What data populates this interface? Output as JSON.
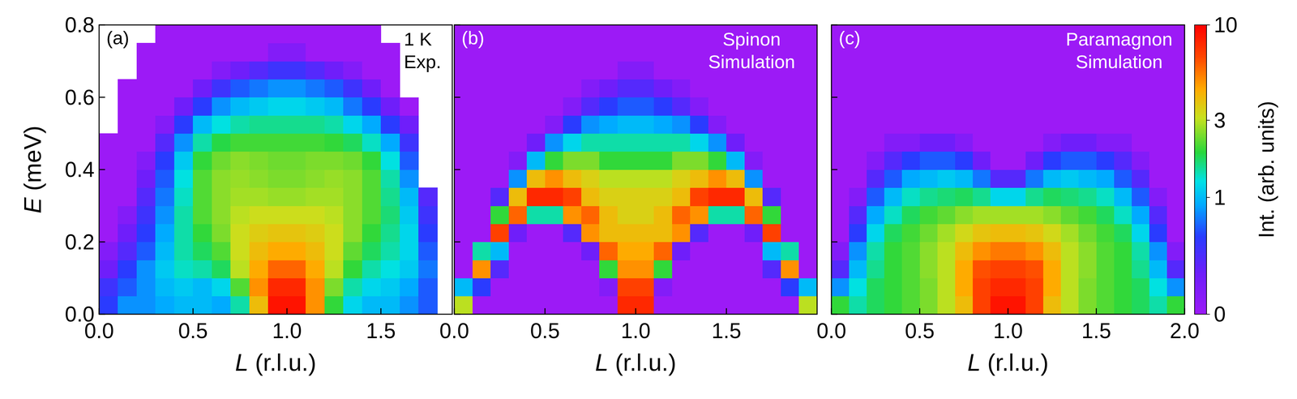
{
  "chart_data": [
    {
      "type": "heatmap",
      "panel_label": "(a)",
      "annotations": [
        "1 K",
        "Exp."
      ],
      "x_label": "L (r.l.u.)",
      "y_label": "E (meV)",
      "xlim": [
        0,
        1.88
      ],
      "ylim": [
        0,
        0.8
      ],
      "xticks": [
        {
          "value": 0,
          "label": "0.0"
        },
        {
          "value": 0.5,
          "label": "0.5"
        },
        {
          "value": 1,
          "label": "1.0"
        },
        {
          "value": 1.5,
          "label": "1.5"
        }
      ],
      "yticks": [
        {
          "value": 0,
          "label": "0.0"
        },
        {
          "value": 0.2,
          "label": "0.2"
        },
        {
          "value": 0.4,
          "label": "0.4"
        },
        {
          "value": 0.6,
          "label": "0.6"
        },
        {
          "value": 0.8,
          "label": "0.8"
        }
      ],
      "x": [
        0.05,
        0.15,
        0.25,
        0.35,
        0.45,
        0.55,
        0.65,
        0.75,
        0.85,
        0.95,
        1.05,
        1.15,
        1.25,
        1.35,
        1.45,
        1.55,
        1.65,
        1.75,
        1.85
      ],
      "y": [
        0.025,
        0.075,
        0.125,
        0.175,
        0.225,
        0.275,
        0.325,
        0.375,
        0.425,
        0.475,
        0.525,
        0.575,
        0.625,
        0.675,
        0.725,
        0.775
      ],
      "z": [
        [
          0.5,
          0.8,
          0.8,
          0.9,
          1.0,
          1.0,
          0.9,
          1.5,
          4,
          9,
          9,
          5,
          2,
          1.2,
          1.0,
          1.0,
          0.8,
          0.6,
          null
        ],
        [
          0.4,
          0.6,
          0.8,
          1.0,
          1.1,
          1.0,
          1.2,
          2.2,
          5,
          8,
          8,
          5,
          2.5,
          1.5,
          1.2,
          1.1,
          0.9,
          0.6,
          null
        ],
        [
          0.2,
          0.5,
          0.8,
          1.1,
          1.4,
          1.5,
          1.8,
          3,
          4.5,
          6,
          6,
          4.5,
          3,
          2,
          1.5,
          1.3,
          1.1,
          0.7,
          null
        ],
        [
          0.1,
          0.3,
          0.6,
          1.0,
          1.5,
          1.8,
          2.2,
          3.2,
          4,
          4.5,
          4.5,
          4,
          3.2,
          2.3,
          1.8,
          1.5,
          1.2,
          0.6,
          null
        ],
        [
          0,
          0.2,
          0.5,
          0.9,
          1.5,
          2.0,
          2.5,
          3.2,
          3.6,
          3.8,
          3.8,
          3.6,
          3.2,
          2.6,
          2.0,
          1.6,
          1.2,
          0.5,
          null
        ],
        [
          0,
          0.1,
          0.4,
          0.8,
          1.5,
          2.2,
          2.6,
          3.0,
          3.2,
          3.2,
          3.2,
          3.2,
          3.0,
          2.6,
          2.2,
          1.7,
          1.1,
          0.4,
          null
        ],
        [
          0,
          0,
          0.3,
          0.7,
          1.4,
          2.2,
          2.6,
          2.8,
          2.8,
          2.7,
          2.7,
          2.8,
          2.8,
          2.6,
          2.2,
          1.6,
          1.0,
          0.3,
          null
        ],
        [
          0,
          0,
          0.2,
          0.6,
          1.3,
          2.2,
          2.6,
          2.7,
          2.6,
          2.5,
          2.5,
          2.6,
          2.7,
          2.6,
          2.2,
          1.5,
          0.8,
          null,
          null
        ],
        [
          0,
          0,
          0.1,
          0.5,
          1.1,
          2.0,
          2.4,
          2.6,
          2.5,
          2.4,
          2.4,
          2.5,
          2.5,
          2.4,
          2.0,
          1.3,
          0.6,
          null,
          null
        ],
        [
          0,
          0,
          0,
          0.3,
          0.8,
          1.5,
          1.9,
          2.1,
          2.1,
          2.1,
          2.1,
          2.1,
          2.0,
          1.8,
          1.4,
          0.9,
          0.4,
          null,
          null
        ],
        [
          null,
          0,
          0,
          0.1,
          0.5,
          1.0,
          1.3,
          1.5,
          1.6,
          1.6,
          1.6,
          1.6,
          1.5,
          1.2,
          0.9,
          0.5,
          0.2,
          null,
          null
        ],
        [
          null,
          0,
          0,
          0,
          0.2,
          0.5,
          0.8,
          1.0,
          1.1,
          1.2,
          1.2,
          1.1,
          1.0,
          0.7,
          0.5,
          0.2,
          0,
          null,
          null
        ],
        [
          null,
          0,
          0,
          0,
          0,
          0.2,
          0.4,
          0.6,
          0.7,
          0.8,
          0.8,
          0.7,
          0.6,
          0.4,
          0.2,
          0,
          null,
          null,
          null
        ],
        [
          null,
          null,
          0,
          0,
          0,
          0,
          0.1,
          0.2,
          0.3,
          0.4,
          0.4,
          0.3,
          0.2,
          0.1,
          0,
          0,
          null,
          null,
          null
        ],
        [
          null,
          null,
          0,
          0,
          0,
          0,
          0,
          0,
          0,
          0.1,
          0.1,
          0,
          0,
          0,
          0,
          0,
          null,
          null,
          null
        ],
        [
          null,
          null,
          null,
          0,
          0,
          0,
          0,
          0,
          0,
          0,
          0,
          0,
          0,
          0,
          0,
          null,
          null,
          null,
          null
        ]
      ]
    },
    {
      "type": "heatmap",
      "panel_label": "(b)",
      "annotations": [
        "Spinon",
        "Simulation"
      ],
      "x_label": "L (r.l.u.)",
      "tick_labels": "x",
      "xlim": [
        0,
        2.0
      ],
      "ylim": [
        0,
        0.8
      ],
      "xticks": [
        {
          "value": 0,
          "label": "0.0"
        },
        {
          "value": 0.5,
          "label": "0.5"
        },
        {
          "value": 1,
          "label": "1.0"
        },
        {
          "value": 1.5,
          "label": "1.5"
        }
      ],
      "yticks": [
        {
          "value": 0,
          "label": "0.0"
        },
        {
          "value": 0.2,
          "label": "0.2"
        },
        {
          "value": 0.4,
          "label": "0.4"
        },
        {
          "value": 0.6,
          "label": "0.6"
        },
        {
          "value": 0.8,
          "label": "0.8"
        }
      ],
      "x": [
        0.05,
        0.15,
        0.25,
        0.35,
        0.45,
        0.55,
        0.65,
        0.75,
        0.85,
        0.95,
        1.05,
        1.15,
        1.25,
        1.35,
        1.45,
        1.55,
        1.65,
        1.75,
        1.85,
        1.95
      ],
      "y": [
        0.025,
        0.075,
        0.125,
        0.175,
        0.225,
        0.275,
        0.325,
        0.375,
        0.425,
        0.475,
        0.525,
        0.575,
        0.625,
        0.675,
        0.725,
        0.775
      ],
      "z": [
        [
          3,
          0,
          0,
          0,
          0,
          0,
          0,
          0,
          0,
          8,
          8,
          0,
          0,
          0,
          0,
          0,
          0,
          0,
          0,
          3
        ],
        [
          1,
          0.5,
          0,
          0,
          0,
          0,
          0,
          0,
          0.1,
          7,
          7,
          0.1,
          0,
          0,
          0,
          0,
          0,
          0,
          0.5,
          1
        ],
        [
          0,
          5,
          0.3,
          0,
          0,
          0,
          0,
          0,
          2,
          5,
          5,
          2,
          0,
          0,
          0,
          0,
          0,
          0.3,
          5,
          0
        ],
        [
          0,
          1.5,
          1,
          0,
          0,
          0,
          0,
          0.2,
          6,
          4.5,
          4.5,
          6,
          0.2,
          0,
          0,
          0,
          0,
          1,
          1.5,
          0
        ],
        [
          0,
          0,
          7,
          0.2,
          0,
          0,
          0.3,
          5,
          4,
          4,
          4,
          4,
          5,
          0.3,
          0,
          0,
          0.2,
          7,
          0,
          0
        ],
        [
          0,
          0,
          2,
          6,
          1.5,
          1.5,
          5,
          6,
          4,
          3.5,
          3.5,
          4,
          6,
          5,
          1.5,
          1.5,
          6,
          2,
          0,
          0
        ],
        [
          0,
          0,
          0.3,
          4,
          8,
          8,
          7,
          4,
          3.5,
          3.5,
          3.5,
          3.5,
          4,
          7,
          8,
          8,
          4,
          0.3,
          0,
          0
        ],
        [
          0,
          0,
          0,
          0.8,
          4,
          5,
          4,
          3.5,
          3,
          3,
          3,
          3,
          3.5,
          4,
          5,
          4,
          0.8,
          0,
          0,
          0
        ],
        [
          0,
          0,
          0,
          0.1,
          1,
          2,
          2.5,
          2.5,
          2,
          2,
          2,
          2,
          2.5,
          2.5,
          2,
          1,
          0.1,
          0,
          0,
          0
        ],
        [
          0,
          0,
          0,
          0,
          0.2,
          0.8,
          1.2,
          1.5,
          1.5,
          1.5,
          1.5,
          1.5,
          1.5,
          1.2,
          0.8,
          0.2,
          0,
          0,
          0,
          0
        ],
        [
          0,
          0,
          0,
          0,
          0,
          0.1,
          0.5,
          0.8,
          0.9,
          1,
          1,
          0.9,
          0.8,
          0.5,
          0.1,
          0,
          0,
          0,
          0,
          0
        ],
        [
          0,
          0,
          0,
          0,
          0,
          0,
          0.1,
          0.3,
          0.5,
          0.6,
          0.6,
          0.5,
          0.3,
          0.1,
          0,
          0,
          0,
          0,
          0,
          0
        ],
        [
          0,
          0,
          0,
          0,
          0,
          0,
          0,
          0.1,
          0.2,
          0.3,
          0.3,
          0.2,
          0.1,
          0,
          0,
          0,
          0,
          0,
          0,
          0
        ],
        [
          0,
          0,
          0,
          0,
          0,
          0,
          0,
          0,
          0,
          0.1,
          0.1,
          0,
          0,
          0,
          0,
          0,
          0,
          0,
          0,
          0
        ],
        [
          0,
          0,
          0,
          0,
          0,
          0,
          0,
          0,
          0,
          0,
          0,
          0,
          0,
          0,
          0,
          0,
          0,
          0,
          0,
          0
        ],
        [
          0,
          0,
          0,
          0,
          0,
          0,
          0,
          0,
          0,
          0,
          0,
          0,
          0,
          0,
          0,
          0,
          0,
          0,
          0,
          0
        ]
      ]
    },
    {
      "type": "heatmap",
      "panel_label": "(c)",
      "annotations": [
        "Paramagnon",
        "Simulation"
      ],
      "x_label": "L (r.l.u.)",
      "tick_labels": "x",
      "xlim": [
        0,
        2.0
      ],
      "ylim": [
        0,
        0.8
      ],
      "xticks": [
        {
          "value": 0,
          "label": "0.0"
        },
        {
          "value": 0.5,
          "label": "0.5"
        },
        {
          "value": 1,
          "label": "1.0"
        },
        {
          "value": 1.5,
          "label": "1.5"
        },
        {
          "value": 2,
          "label": "2.0"
        }
      ],
      "yticks": [
        {
          "value": 0,
          "label": "0.0"
        },
        {
          "value": 0.2,
          "label": "0.2"
        },
        {
          "value": 0.4,
          "label": "0.4"
        },
        {
          "value": 0.6,
          "label": "0.6"
        },
        {
          "value": 0.8,
          "label": "0.8"
        }
      ],
      "x": [
        0.05,
        0.15,
        0.25,
        0.35,
        0.45,
        0.55,
        0.65,
        0.75,
        0.85,
        0.95,
        1.05,
        1.15,
        1.25,
        1.35,
        1.45,
        1.55,
        1.65,
        1.75,
        1.85,
        1.95
      ],
      "y": [
        0.025,
        0.075,
        0.125,
        0.175,
        0.225,
        0.275,
        0.325,
        0.375,
        0.425,
        0.475,
        0.525,
        0.575,
        0.625,
        0.675,
        0.725,
        0.775
      ],
      "z": [
        [
          2,
          1.5,
          1.8,
          2,
          2.2,
          2.5,
          3,
          4,
          7,
          9,
          9,
          7,
          4,
          3,
          2.5,
          2.2,
          2,
          1.8,
          1.5,
          2
        ],
        [
          0.8,
          1.3,
          1.8,
          2,
          2.2,
          2.5,
          3,
          4.5,
          7,
          8,
          8,
          7,
          4.5,
          3,
          2.5,
          2.2,
          2,
          1.8,
          1.3,
          0.8
        ],
        [
          0.3,
          1,
          1.6,
          2,
          2.2,
          2.6,
          3,
          4.5,
          6.5,
          7,
          7,
          6.5,
          4.5,
          3,
          2.6,
          2.2,
          2,
          1.6,
          1,
          0.3
        ],
        [
          0.1,
          0.8,
          1.5,
          2,
          2.2,
          2.6,
          3,
          4,
          5,
          5.5,
          5.5,
          5,
          4,
          3,
          2.6,
          2.2,
          2,
          1.5,
          0.8,
          0.1
        ],
        [
          0,
          0.5,
          1.2,
          1.8,
          2.1,
          2.4,
          2.8,
          3.3,
          3.8,
          4,
          4,
          3.8,
          3.3,
          2.8,
          2.4,
          2.1,
          1.8,
          1.2,
          0.5,
          0
        ],
        [
          0,
          0.3,
          0.9,
          1.4,
          1.8,
          2.1,
          2.3,
          2.6,
          2.8,
          2.8,
          2.8,
          2.8,
          2.6,
          2.3,
          2.1,
          1.8,
          1.4,
          0.9,
          0.3,
          0
        ],
        [
          0,
          0.1,
          0.6,
          1,
          1.4,
          1.6,
          1.7,
          1.8,
          1.6,
          1.2,
          1.2,
          1.6,
          1.8,
          1.7,
          1.6,
          1.4,
          1,
          0.6,
          0.1,
          0
        ],
        [
          0,
          0,
          0.3,
          0.6,
          0.9,
          1,
          1.1,
          1,
          0.7,
          0.3,
          0.3,
          0.7,
          1,
          1.1,
          1,
          0.9,
          0.6,
          0.3,
          0,
          0
        ],
        [
          0,
          0,
          0.1,
          0.3,
          0.5,
          0.6,
          0.6,
          0.5,
          0.2,
          0,
          0,
          0.2,
          0.5,
          0.6,
          0.6,
          0.5,
          0.3,
          0.1,
          0,
          0
        ],
        [
          0,
          0,
          0,
          0.1,
          0.1,
          0.2,
          0.2,
          0.1,
          0,
          0,
          0,
          0,
          0.1,
          0.2,
          0.2,
          0.1,
          0.1,
          0,
          0,
          0
        ],
        [
          0,
          0,
          0,
          0,
          0,
          0,
          0,
          0,
          0,
          0,
          0,
          0,
          0,
          0,
          0,
          0,
          0,
          0,
          0,
          0
        ],
        [
          0,
          0,
          0,
          0,
          0,
          0,
          0,
          0,
          0,
          0,
          0,
          0,
          0,
          0,
          0,
          0,
          0,
          0,
          0,
          0
        ],
        [
          0,
          0,
          0,
          0,
          0,
          0,
          0,
          0,
          0,
          0,
          0,
          0,
          0,
          0,
          0,
          0,
          0,
          0,
          0,
          0
        ],
        [
          0,
          0,
          0,
          0,
          0,
          0,
          0,
          0,
          0,
          0,
          0,
          0,
          0,
          0,
          0,
          0,
          0,
          0,
          0,
          0
        ],
        [
          0,
          0,
          0,
          0,
          0,
          0,
          0,
          0,
          0,
          0,
          0,
          0,
          0,
          0,
          0,
          0,
          0,
          0,
          0,
          0
        ],
        [
          0,
          0,
          0,
          0,
          0,
          0,
          0,
          0,
          0,
          0,
          0,
          0,
          0,
          0,
          0,
          0,
          0,
          0,
          0,
          0
        ]
      ],
      "colorbar": {
        "label": "Int. (arb. units)",
        "range": [
          0,
          10
        ],
        "ticks": [
          0,
          1,
          3,
          10
        ]
      }
    }
  ]
}
